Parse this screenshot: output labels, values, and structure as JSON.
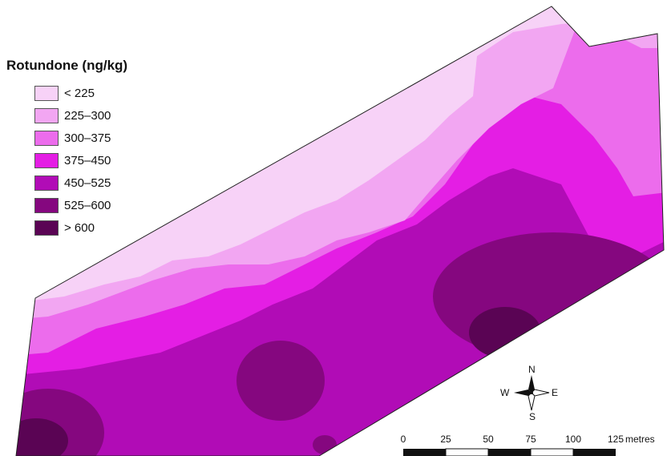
{
  "legend": {
    "title": "Rotundone (ng/kg)",
    "items": [
      {
        "label": "< 225",
        "color": "#f7d2f7"
      },
      {
        "label": "225–300",
        "color": "#f2a6f2"
      },
      {
        "label": "300–375",
        "color": "#ec6cec"
      },
      {
        "label": "375–450",
        "color": "#e41ee4"
      },
      {
        "label": "450–525",
        "color": "#b10cb6"
      },
      {
        "label": "525–600",
        "color": "#85077f"
      },
      {
        "label": "> 600",
        "color": "#5a0454"
      }
    ]
  },
  "compass": {
    "n": "N",
    "s": "S",
    "e": "E",
    "w": "W"
  },
  "scale_bar": {
    "ticks": [
      "0",
      "25",
      "50",
      "75",
      "100",
      "125"
    ],
    "unit": "metres"
  }
}
